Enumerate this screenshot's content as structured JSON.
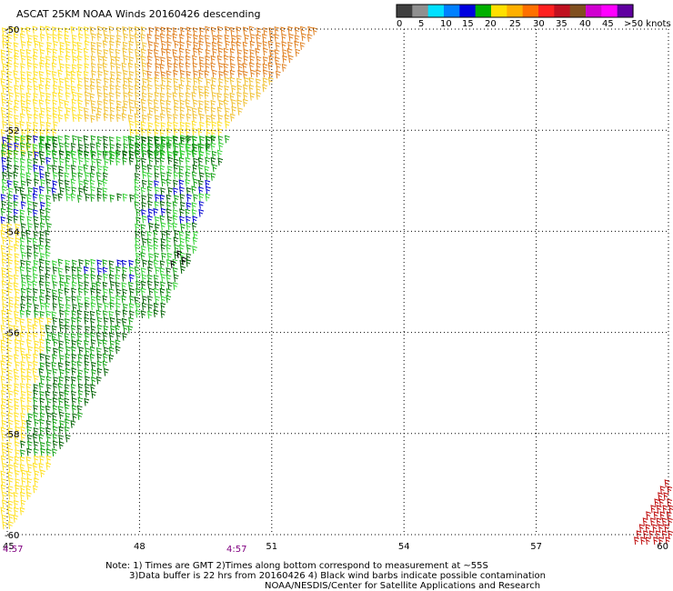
{
  "header": {
    "title": "ASCAT 25KM NOAA Winds 20160426 descending"
  },
  "colorbar": {
    "labels": [
      "0",
      "5",
      "10",
      "15",
      "20",
      "25",
      "30",
      "35",
      "40",
      "45",
      ">50 knots"
    ],
    "colors": [
      "#404040",
      "#909090",
      "#00e0ff",
      "#0080ff",
      "#0000e0",
      "#00b000",
      "#ffe000",
      "#ffb000",
      "#ff7000",
      "#ff2020",
      "#c01020",
      "#805020",
      "#d000d0",
      "#ff00ff",
      "#6000a0"
    ]
  },
  "map": {
    "lat_labels": [
      "-50",
      "-52",
      "-54",
      "-56",
      "-58",
      "-60"
    ],
    "lon_labels": [
      "45",
      "48",
      "51",
      "54",
      "57",
      "60"
    ],
    "lat_range": [
      -60,
      -50
    ],
    "lon_range": [
      45,
      60
    ],
    "grid_style": "dotted"
  },
  "times": [
    "4:57",
    "4:57"
  ],
  "notes": {
    "line1": "Note: 1) Times are GMT 2)Times along bottom correspond to measurement at ~55S",
    "line2": "3)Data buffer is 22 hrs from 20160426 4) Black wind barbs indicate possible contamination",
    "line3": "NOAA/NESDIS/Center for Satellite Applications and Research"
  },
  "wind_colors": {
    "orange": "#e08020",
    "light_orange": "#f0c030",
    "yellow": "#ffe020",
    "pale_yellow": "#fff040",
    "dark_green": "#006000",
    "green": "#10a010",
    "light_green": "#30d030",
    "blue": "#0000d0",
    "red": "#c01010",
    "contaminated": "#000000"
  }
}
